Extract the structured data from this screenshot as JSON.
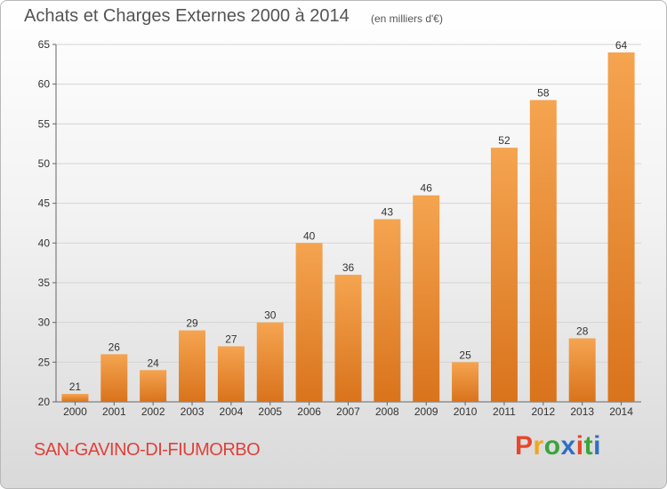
{
  "header": {
    "title": "Achats et Charges Externes 2000 à 2014",
    "subtitle": "(en milliers d'€)"
  },
  "footer": {
    "commune": "SAN-GAVINO-DI-FIUMORBO",
    "logo_text": "Proxiti",
    "logo_colors": [
      "#e8452c",
      "#f2a51d",
      "#3aa43c",
      "#2f6fc4",
      "#e8452c",
      "#3aa43c",
      "#2f6fc4"
    ]
  },
  "colors": {
    "bar_light": "#f5a450",
    "bar_dark": "#d9731c",
    "grid": "#d4d4d4"
  },
  "chart_data": {
    "type": "bar",
    "title": "Achats et Charges Externes 2000 à 2014",
    "subtitle": "(en milliers d'€)",
    "xlabel": "",
    "ylabel": "",
    "categories": [
      "2000",
      "2001",
      "2002",
      "2003",
      "2004",
      "2005",
      "2006",
      "2007",
      "2008",
      "2009",
      "2010",
      "2011",
      "2012",
      "2013",
      "2014"
    ],
    "values": [
      21,
      26,
      24,
      29,
      27,
      30,
      40,
      36,
      43,
      46,
      25,
      52,
      58,
      28,
      64
    ],
    "ylim": [
      20,
      65
    ],
    "yticks": [
      20,
      25,
      30,
      35,
      40,
      45,
      50,
      55,
      60,
      65
    ],
    "grid": true
  }
}
